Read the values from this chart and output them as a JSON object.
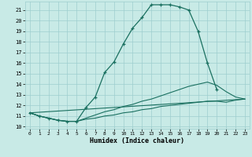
{
  "xlabel": "Humidex (Indice chaleur)",
  "bg_color": "#c8eae6",
  "grid_color": "#9ecece",
  "line_color": "#1a7060",
  "xlim": [
    -0.5,
    23.5
  ],
  "ylim": [
    9.8,
    21.8
  ],
  "yticks": [
    10,
    11,
    12,
    13,
    14,
    15,
    16,
    17,
    18,
    19,
    20,
    21
  ],
  "xticks": [
    0,
    1,
    2,
    3,
    4,
    5,
    6,
    7,
    8,
    9,
    10,
    11,
    12,
    13,
    14,
    15,
    16,
    17,
    18,
    19,
    20,
    21,
    22,
    23
  ],
  "line1_x": [
    0,
    1,
    2,
    3,
    4,
    5,
    6,
    7,
    8,
    9,
    10,
    11,
    12,
    13,
    14,
    15,
    16,
    17,
    18,
    19,
    20
  ],
  "line1_y": [
    11.3,
    11.0,
    10.8,
    10.6,
    10.5,
    10.5,
    11.8,
    12.8,
    15.1,
    16.1,
    17.8,
    19.3,
    20.3,
    21.5,
    21.5,
    21.5,
    21.3,
    21.0,
    19.0,
    16.0,
    13.5
  ],
  "line2_x": [
    0,
    1,
    2,
    3,
    4,
    5,
    6,
    7,
    8,
    9,
    10,
    11,
    12,
    13,
    14,
    15,
    16,
    17,
    18,
    19,
    20,
    21,
    22,
    23
  ],
  "line2_y": [
    11.3,
    11.0,
    10.8,
    10.6,
    10.5,
    10.5,
    10.8,
    11.1,
    11.4,
    11.6,
    11.9,
    12.1,
    12.4,
    12.6,
    12.9,
    13.2,
    13.5,
    13.8,
    14.0,
    14.2,
    13.9,
    13.3,
    12.8,
    12.6
  ],
  "line3_x": [
    0,
    1,
    2,
    3,
    4,
    5,
    6,
    7,
    8,
    9,
    10,
    11,
    12,
    13,
    14,
    15,
    16,
    17,
    18,
    19,
    20,
    21,
    22,
    23
  ],
  "line3_y": [
    11.3,
    11.0,
    10.8,
    10.6,
    10.5,
    10.5,
    10.7,
    10.8,
    11.0,
    11.1,
    11.3,
    11.4,
    11.6,
    11.7,
    11.9,
    12.0,
    12.1,
    12.2,
    12.3,
    12.4,
    12.4,
    12.3,
    12.5,
    12.6
  ],
  "line4_x": [
    0,
    23
  ],
  "line4_y": [
    11.3,
    12.6
  ]
}
